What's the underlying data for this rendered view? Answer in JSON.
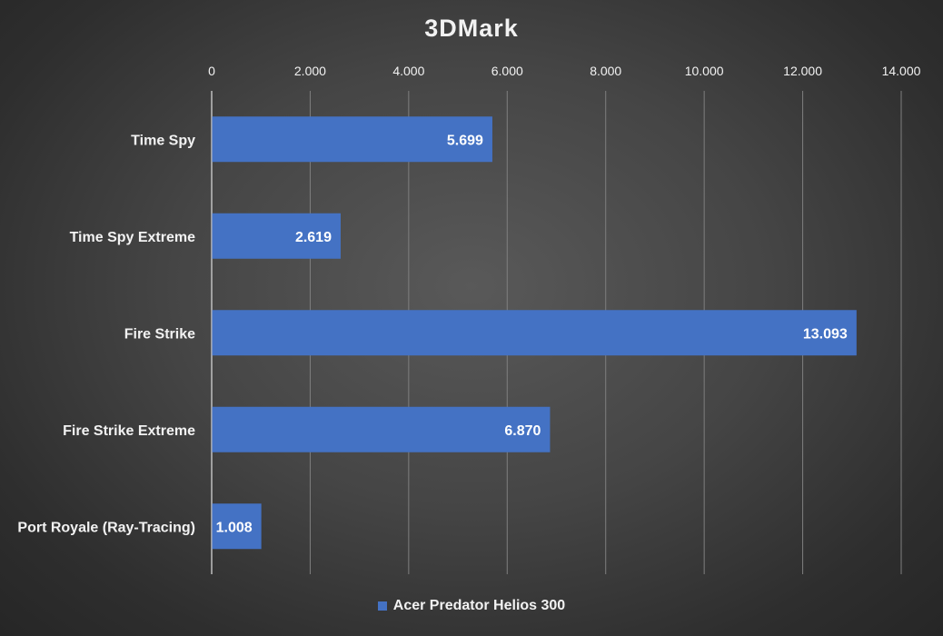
{
  "chart_data": {
    "type": "bar",
    "orientation": "horizontal",
    "title": "3DMark",
    "xlabel": "",
    "ylabel": "",
    "categories": [
      "Time Spy",
      "Time Spy Extreme",
      "Fire Strike",
      "Fire Strike Extreme",
      "Port Royale (Ray-Tracing)"
    ],
    "series": [
      {
        "name": "Acer Predator Helios 300",
        "values": [
          5699,
          2619,
          13093,
          6870,
          1008
        ],
        "value_labels": [
          "5.699",
          "2.619",
          "13.093",
          "6.870",
          "1.008"
        ]
      }
    ],
    "xlim": [
      0,
      14000
    ],
    "ticks": [
      0,
      2000,
      4000,
      6000,
      8000,
      10000,
      12000,
      14000
    ],
    "tick_labels": [
      "0",
      "2.000",
      "4.000",
      "6.000",
      "8.000",
      "10.000",
      "12.000",
      "14.000"
    ],
    "axis_position": "top",
    "grid": true,
    "legend": "bottom",
    "colors": {
      "bar": "#4472c4",
      "text": "#f2f2f2",
      "grid": "#7f7f7f",
      "axis": "#bfbfbf"
    }
  }
}
